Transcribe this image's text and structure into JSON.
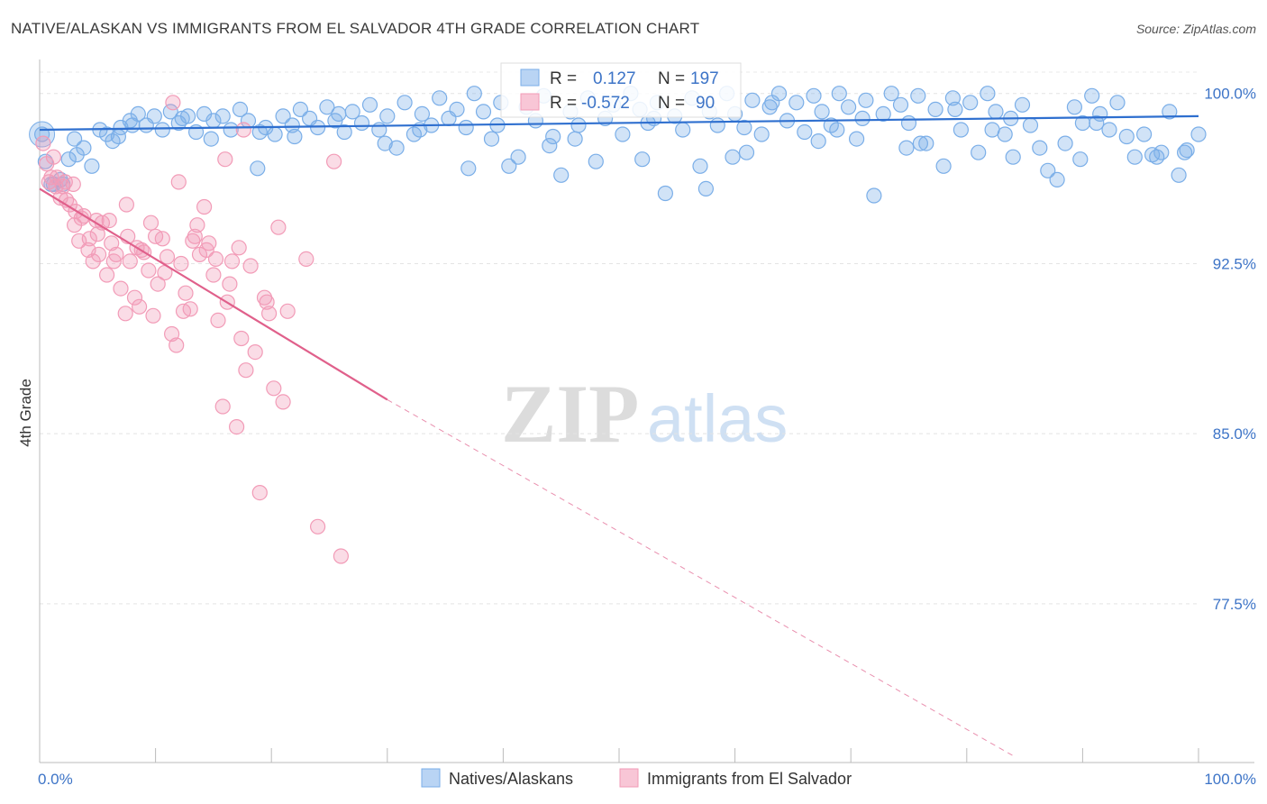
{
  "chart_data": {
    "type": "scatter",
    "title": "NATIVE/ALASKAN VS IMMIGRANTS FROM EL SALVADOR 4TH GRADE CORRELATION CHART",
    "source": "Source: ZipAtlas.com",
    "ylabel": "4th Grade",
    "xlabel": "",
    "xlim": [
      0,
      100
    ],
    "ylim": [
      70.5,
      101.5
    ],
    "x_ticks": [
      "0.0%",
      "100.0%"
    ],
    "y_ticks": [
      {
        "value": 100.0,
        "label": "100.0%"
      },
      {
        "value": 92.5,
        "label": "92.5%"
      },
      {
        "value": 85.0,
        "label": "85.0%"
      },
      {
        "value": 77.5,
        "label": "77.5%"
      }
    ],
    "grid": true,
    "legend_position": "bottom-center",
    "stats": [
      {
        "r_label": "R =",
        "r_value": "0.127",
        "n_label": "N =",
        "n_value": "197"
      },
      {
        "r_label": "R =",
        "r_value": "-0.572",
        "n_label": "N =",
        "n_value": "90"
      }
    ],
    "watermark": {
      "zip": "ZIP",
      "atlas": "atlas"
    },
    "series": [
      {
        "name": "Natives/Alaskans",
        "color": "#7aaee8",
        "line_color": "#2e6fcf",
        "trend": {
          "x": [
            0,
            100
          ],
          "y": [
            98.4,
            99.0
          ],
          "dashed_to": null
        },
        "points": [
          [
            0.2,
            98.2
          ],
          [
            0.5,
            97.0
          ],
          [
            1.2,
            96.0
          ],
          [
            1.8,
            96.2
          ],
          [
            2.5,
            97.1
          ],
          [
            3.0,
            98.0
          ],
          [
            3.8,
            97.6
          ],
          [
            4.5,
            96.8
          ],
          [
            5.2,
            98.4
          ],
          [
            5.8,
            98.2
          ],
          [
            6.3,
            97.9
          ],
          [
            7.0,
            98.5
          ],
          [
            7.8,
            98.8
          ],
          [
            8.5,
            99.1
          ],
          [
            9.2,
            98.6
          ],
          [
            9.9,
            99.0
          ],
          [
            10.6,
            98.4
          ],
          [
            11.3,
            99.2
          ],
          [
            12.0,
            98.7
          ],
          [
            12.8,
            99.0
          ],
          [
            13.5,
            98.3
          ],
          [
            14.2,
            99.1
          ],
          [
            15.0,
            98.8
          ],
          [
            15.8,
            99.0
          ],
          [
            16.5,
            98.4
          ],
          [
            17.3,
            99.3
          ],
          [
            18.0,
            98.8
          ],
          [
            18.8,
            96.7
          ],
          [
            19.5,
            98.5
          ],
          [
            20.3,
            98.2
          ],
          [
            21.0,
            99.0
          ],
          [
            21.8,
            98.6
          ],
          [
            22.5,
            99.3
          ],
          [
            23.3,
            98.9
          ],
          [
            24.0,
            98.5
          ],
          [
            24.8,
            99.4
          ],
          [
            25.5,
            98.8
          ],
          [
            26.3,
            98.3
          ],
          [
            27.0,
            99.2
          ],
          [
            27.8,
            98.7
          ],
          [
            28.5,
            99.5
          ],
          [
            29.3,
            98.4
          ],
          [
            30.0,
            99.0
          ],
          [
            30.8,
            97.6
          ],
          [
            31.5,
            99.6
          ],
          [
            32.3,
            98.2
          ],
          [
            33.0,
            99.1
          ],
          [
            33.8,
            98.6
          ],
          [
            34.5,
            99.8
          ],
          [
            35.3,
            98.9
          ],
          [
            36.0,
            99.3
          ],
          [
            36.8,
            98.5
          ],
          [
            37.5,
            100.0
          ],
          [
            38.3,
            99.2
          ],
          [
            39.0,
            98.0
          ],
          [
            39.8,
            99.6
          ],
          [
            40.5,
            96.8
          ],
          [
            41.3,
            97.2
          ],
          [
            42.0,
            99.4
          ],
          [
            42.8,
            98.8
          ],
          [
            43.5,
            99.9
          ],
          [
            44.3,
            98.1
          ],
          [
            45.0,
            96.4
          ],
          [
            45.8,
            99.2
          ],
          [
            46.5,
            98.6
          ],
          [
            47.3,
            99.8
          ],
          [
            48.0,
            97.0
          ],
          [
            48.8,
            98.9
          ],
          [
            49.5,
            99.5
          ],
          [
            50.3,
            98.2
          ],
          [
            51.0,
            100.0
          ],
          [
            51.8,
            99.3
          ],
          [
            52.5,
            98.7
          ],
          [
            53.3,
            99.6
          ],
          [
            54.0,
            95.6
          ],
          [
            54.8,
            99.0
          ],
          [
            55.5,
            98.4
          ],
          [
            56.3,
            99.8
          ],
          [
            57.0,
            96.8
          ],
          [
            57.8,
            99.2
          ],
          [
            58.5,
            98.6
          ],
          [
            59.3,
            100.0
          ],
          [
            60.0,
            99.1
          ],
          [
            60.8,
            98.5
          ],
          [
            61.5,
            99.7
          ],
          [
            62.3,
            98.2
          ],
          [
            63.0,
            99.4
          ],
          [
            63.8,
            100.0
          ],
          [
            64.5,
            98.8
          ],
          [
            65.3,
            99.6
          ],
          [
            66.0,
            98.3
          ],
          [
            66.8,
            99.9
          ],
          [
            67.5,
            99.2
          ],
          [
            68.3,
            98.6
          ],
          [
            69.0,
            100.0
          ],
          [
            69.8,
            99.4
          ],
          [
            70.5,
            98.0
          ],
          [
            71.3,
            99.7
          ],
          [
            72.0,
            95.5
          ],
          [
            72.8,
            99.1
          ],
          [
            73.5,
            100.0
          ],
          [
            74.3,
            99.5
          ],
          [
            75.0,
            98.7
          ],
          [
            75.8,
            99.9
          ],
          [
            76.5,
            97.8
          ],
          [
            77.3,
            99.3
          ],
          [
            78.0,
            96.8
          ],
          [
            78.8,
            99.8
          ],
          [
            79.5,
            98.4
          ],
          [
            80.3,
            99.6
          ],
          [
            81.0,
            97.4
          ],
          [
            81.8,
            100.0
          ],
          [
            82.5,
            99.2
          ],
          [
            83.3,
            98.2
          ],
          [
            84.0,
            97.2
          ],
          [
            84.8,
            99.5
          ],
          [
            85.5,
            98.6
          ],
          [
            86.3,
            97.6
          ],
          [
            87.0,
            96.6
          ],
          [
            87.8,
            96.2
          ],
          [
            88.5,
            97.8
          ],
          [
            89.3,
            99.4
          ],
          [
            90.0,
            98.7
          ],
          [
            90.8,
            99.9
          ],
          [
            91.5,
            99.1
          ],
          [
            92.3,
            98.4
          ],
          [
            93.0,
            99.6
          ],
          [
            93.8,
            98.1
          ],
          [
            94.5,
            97.2
          ],
          [
            95.3,
            98.2
          ],
          [
            96.0,
            97.3
          ],
          [
            96.8,
            97.4
          ],
          [
            97.5,
            99.2
          ],
          [
            98.3,
            96.4
          ],
          [
            99.0,
            97.5
          ],
          [
            100.0,
            98.2
          ],
          [
            3.2,
            97.3
          ],
          [
            8.0,
            98.6
          ],
          [
            14.8,
            98.0
          ],
          [
            22.0,
            98.1
          ],
          [
            29.8,
            97.8
          ],
          [
            37.0,
            96.7
          ],
          [
            44.0,
            97.7
          ],
          [
            52.0,
            97.1
          ],
          [
            59.8,
            97.2
          ],
          [
            67.2,
            97.9
          ],
          [
            74.8,
            97.6
          ],
          [
            82.2,
            98.4
          ],
          [
            89.8,
            97.1
          ],
          [
            96.4,
            97.2
          ],
          [
            1.0,
            96.0
          ],
          [
            6.8,
            98.1
          ],
          [
            12.3,
            98.9
          ],
          [
            19.0,
            98.3
          ],
          [
            25.8,
            99.1
          ],
          [
            32.8,
            98.4
          ],
          [
            39.5,
            98.6
          ],
          [
            46.2,
            98.0
          ],
          [
            53.0,
            98.9
          ],
          [
            61.0,
            97.4
          ],
          [
            68.8,
            98.4
          ],
          [
            76.0,
            97.8
          ],
          [
            83.8,
            98.9
          ],
          [
            91.2,
            98.7
          ],
          [
            98.8,
            97.4
          ],
          [
            2.0,
            96.0
          ],
          [
            57.5,
            95.8
          ],
          [
            63.2,
            99.6
          ],
          [
            71.0,
            98.9
          ],
          [
            79.0,
            99.3
          ]
        ]
      },
      {
        "name": "Immigrants from El Salvador",
        "color": "#f29bb7",
        "line_color": "#e0608b",
        "trend": {
          "x": [
            0,
            30
          ],
          "y": [
            95.8,
            86.5
          ],
          "dashed_to": [
            84,
            70.8
          ]
        },
        "points": [
          [
            0.3,
            97.8
          ],
          [
            0.6,
            96.9
          ],
          [
            1.0,
            96.3
          ],
          [
            1.4,
            95.9
          ],
          [
            1.8,
            95.4
          ],
          [
            2.2,
            96.1
          ],
          [
            2.6,
            95.1
          ],
          [
            3.0,
            94.2
          ],
          [
            3.4,
            93.5
          ],
          [
            3.8,
            94.6
          ],
          [
            4.2,
            93.1
          ],
          [
            4.6,
            92.6
          ],
          [
            5.0,
            93.8
          ],
          [
            5.4,
            94.3
          ],
          [
            5.8,
            92.0
          ],
          [
            6.2,
            93.4
          ],
          [
            6.6,
            92.9
          ],
          [
            7.0,
            91.4
          ],
          [
            7.4,
            90.3
          ],
          [
            7.8,
            92.6
          ],
          [
            8.2,
            91.0
          ],
          [
            8.6,
            90.6
          ],
          [
            9.0,
            93.0
          ],
          [
            9.4,
            92.2
          ],
          [
            9.8,
            90.2
          ],
          [
            10.2,
            91.6
          ],
          [
            10.6,
            93.6
          ],
          [
            11.0,
            92.8
          ],
          [
            11.4,
            89.4
          ],
          [
            11.8,
            88.9
          ],
          [
            12.2,
            92.5
          ],
          [
            12.6,
            91.2
          ],
          [
            13.0,
            90.5
          ],
          [
            13.4,
            93.7
          ],
          [
            13.8,
            92.9
          ],
          [
            14.2,
            95.0
          ],
          [
            14.6,
            93.4
          ],
          [
            15.0,
            92.0
          ],
          [
            15.4,
            90.0
          ],
          [
            15.8,
            86.2
          ],
          [
            16.2,
            90.8
          ],
          [
            16.6,
            92.6
          ],
          [
            17.0,
            85.3
          ],
          [
            17.4,
            89.2
          ],
          [
            17.8,
            87.8
          ],
          [
            18.2,
            92.4
          ],
          [
            18.6,
            88.6
          ],
          [
            19.0,
            82.4
          ],
          [
            19.4,
            91.0
          ],
          [
            19.8,
            90.3
          ],
          [
            20.2,
            87.0
          ],
          [
            20.6,
            94.1
          ],
          [
            21.0,
            86.4
          ],
          [
            21.4,
            90.4
          ],
          [
            1.5,
            96.3
          ],
          [
            2.3,
            95.3
          ],
          [
            3.1,
            94.8
          ],
          [
            4.3,
            93.6
          ],
          [
            5.1,
            92.9
          ],
          [
            6.4,
            92.6
          ],
          [
            7.6,
            93.7
          ],
          [
            8.4,
            93.2
          ],
          [
            9.6,
            94.3
          ],
          [
            10.8,
            92.1
          ],
          [
            12.4,
            90.4
          ],
          [
            13.6,
            94.2
          ],
          [
            14.4,
            93.1
          ],
          [
            16.4,
            91.6
          ],
          [
            17.2,
            93.2
          ],
          [
            24.0,
            80.9
          ],
          [
            26.0,
            79.6
          ],
          [
            23.0,
            92.7
          ],
          [
            25.4,
            97.0
          ],
          [
            16.0,
            97.1
          ],
          [
            12.0,
            96.1
          ],
          [
            11.5,
            99.6
          ],
          [
            7.5,
            95.1
          ],
          [
            4.9,
            94.4
          ],
          [
            2.9,
            96.0
          ],
          [
            0.8,
            96.1
          ],
          [
            1.2,
            97.2
          ],
          [
            2.0,
            95.9
          ],
          [
            3.6,
            94.5
          ],
          [
            6.0,
            94.4
          ],
          [
            8.8,
            93.1
          ],
          [
            10.0,
            93.7
          ],
          [
            13.2,
            93.5
          ],
          [
            15.2,
            92.7
          ],
          [
            17.6,
            98.4
          ],
          [
            19.6,
            90.8
          ]
        ]
      }
    ]
  }
}
